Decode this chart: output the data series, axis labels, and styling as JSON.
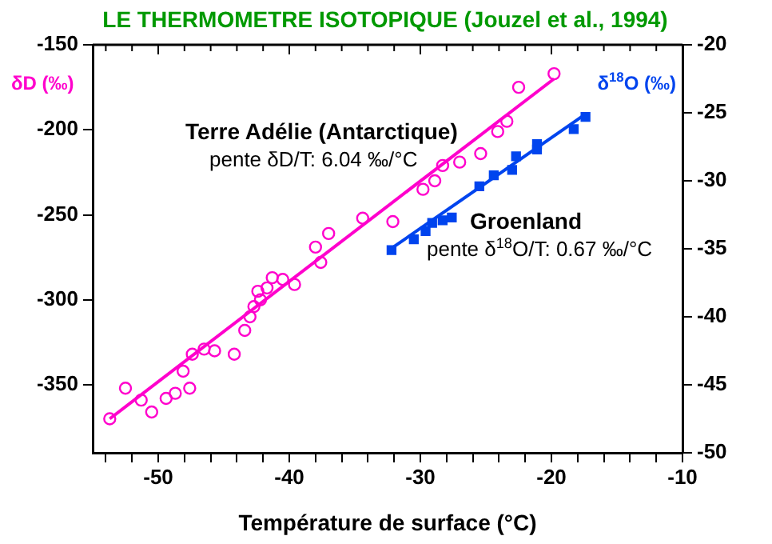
{
  "chart_data": {
    "type": "scatter",
    "title": "LE THERMOMETRE ISOTOPIQUE (Jouzel et al., 1994)",
    "xlabel": "Température de surface (°C)",
    "ylabel": "δD (‰)",
    "y2label": "δ$^{18}$O (‰)",
    "xlim": [
      -55,
      -10
    ],
    "xticks": [
      {
        "value": -54,
        "label": null
      },
      {
        "value": -52,
        "label": null
      },
      -50,
      {
        "value": -48,
        "label": null
      },
      {
        "value": -46,
        "label": null
      },
      {
        "value": -44,
        "label": null
      },
      {
        "value": -42,
        "label": null
      },
      -40,
      {
        "value": -38,
        "label": null
      },
      {
        "value": -36,
        "label": null
      },
      {
        "value": -34,
        "label": null
      },
      {
        "value": -32,
        "label": null
      },
      -30,
      {
        "value": -28,
        "label": null
      },
      {
        "value": -26,
        "label": null
      },
      {
        "value": -24,
        "label": null
      },
      {
        "value": -22,
        "label": null
      },
      -20,
      {
        "value": -18,
        "label": null
      },
      {
        "value": -16,
        "label": null
      },
      {
        "value": -14,
        "label": null
      },
      {
        "value": -12,
        "label": null
      },
      -10
    ],
    "ylim": [
      -390,
      -150
    ],
    "yticks": [
      -350,
      -300,
      -250,
      -200,
      -150
    ],
    "y2lim": [
      -50,
      -20
    ],
    "y2ticks": [
      -50,
      -45,
      -40,
      -35,
      -30,
      -25,
      -20
    ],
    "grid": false,
    "legend": false,
    "series": [
      {
        "marker": "circle",
        "color": "#ff00cc",
        "x": [
          -53.7,
          -52.5,
          -51.3,
          -50.5,
          -49.4,
          -48.7,
          -47.6,
          -48.1,
          -47.4,
          -46.5,
          -45.7,
          -44.2,
          -43.4,
          -43.0,
          -42.7,
          -42.4,
          -42.2,
          -41.7,
          -41.3,
          -40.5,
          -39.6,
          -38.0,
          -37.6,
          -37.0,
          -34.4,
          -32.1,
          -29.8,
          -28.9,
          -28.3,
          -27.0,
          -25.4,
          -24.1,
          -23.4,
          -22.5,
          -19.8
        ],
        "values": [
          -370,
          -352,
          -359,
          -366,
          -358,
          -355,
          -352,
          -342,
          -332,
          -329,
          -330,
          -332,
          -318,
          -310,
          -304,
          -295,
          -300,
          -293,
          -287,
          -288,
          -291,
          -269,
          -278,
          -261,
          -252,
          -254,
          -235,
          -230,
          -221,
          -219,
          -214,
          -201,
          -195,
          -175,
          -167
        ]
      },
      {
        "type": "line",
        "marker": "none",
        "line_style": "solid",
        "color": "#ff00cc",
        "x": [
          -53.7,
          -19.8
        ],
        "values": [
          -370,
          -170
        ]
      },
      {
        "marker": "square",
        "axis": "y2",
        "color": "#0044ee",
        "x": [
          -32.2,
          -30.5,
          -29.6,
          -29.1,
          -28.3,
          -27.6,
          -25.5,
          -24.4,
          -23.0,
          -22.7,
          -21.1,
          -21.1,
          -18.3,
          -17.4
        ],
        "values": [
          -35.1,
          -34.3,
          -33.7,
          -33.1,
          -32.9,
          -32.7,
          -30.4,
          -29.6,
          -29.2,
          -28.2,
          -27.7,
          -27.3,
          -26.2,
          -25.3
        ]
      },
      {
        "type": "line",
        "marker": "none",
        "line_style": "solid",
        "axis": "y2",
        "color": "#0044ee",
        "x": [
          -32.4,
          -17.4
        ],
        "values": [
          -35.1,
          -25.1
        ]
      }
    ],
    "annotations": [
      "Terre Adélie (Antarctique)",
      "pente δD/T: 6.04 ‰/°C",
      "Groenland",
      "pente δ$^{18}$O/T: 0.67 ‰/°C"
    ]
  }
}
